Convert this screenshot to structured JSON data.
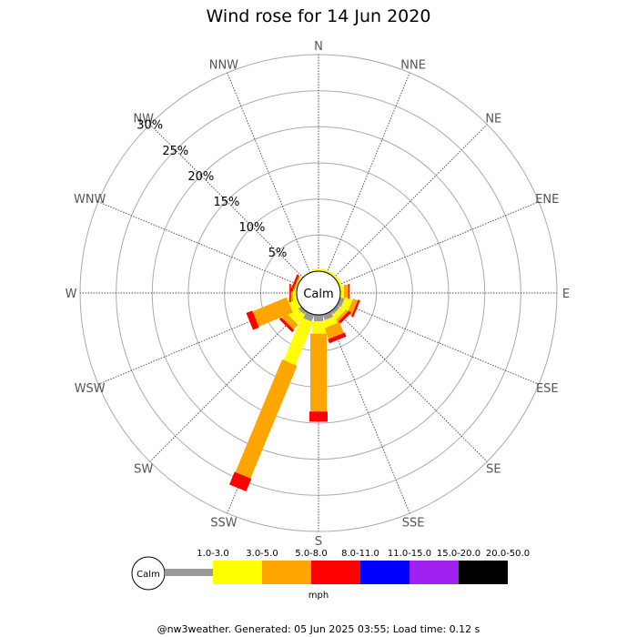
{
  "chart_data": {
    "type": "wind-rose",
    "title": "Wind rose for 14 Jun 2020",
    "directions": [
      "N",
      "NNE",
      "NE",
      "ENE",
      "E",
      "ESE",
      "SE",
      "SSE",
      "S",
      "SSW",
      "SW",
      "WSW",
      "W",
      "WNW",
      "NW",
      "NNW"
    ],
    "radial_ticks": [
      "5%",
      "10%",
      "15%",
      "20%",
      "25%",
      "30%"
    ],
    "radial_max_percent": 30,
    "calm_label": "Calm",
    "speed_bins": [
      "1.0-3.0",
      "3.0-5.0",
      "5.0-8.0",
      "8.0-11.0",
      "11.0-15.0",
      "15.0-20.0",
      "20.0-50.0"
    ],
    "bin_colors": [
      "#999999",
      "#ffff00",
      "#ffa500",
      "#ff0000",
      "#0000ff",
      "#a020f0",
      "#000000"
    ],
    "unit": "mph",
    "series": [
      {
        "direction": "N",
        "values": [
          0,
          0.3,
          0,
          0,
          0,
          0,
          0
        ]
      },
      {
        "direction": "NNE",
        "values": [
          0,
          0.3,
          0,
          0,
          0,
          0,
          0
        ]
      },
      {
        "direction": "NE",
        "values": [
          0,
          0.3,
          0,
          0,
          0,
          0,
          0
        ]
      },
      {
        "direction": "ENE",
        "values": [
          0,
          0.4,
          0,
          0,
          0,
          0,
          0
        ]
      },
      {
        "direction": "E",
        "values": [
          0,
          0.5,
          0.6,
          0.2,
          0,
          0,
          0
        ]
      },
      {
        "direction": "ESE",
        "values": [
          0.6,
          1.1,
          0.7,
          0.3,
          0,
          0,
          0
        ]
      },
      {
        "direction": "SE",
        "values": [
          0.5,
          0.8,
          0.4,
          0.4,
          0,
          0,
          0
        ]
      },
      {
        "direction": "SSE",
        "values": [
          0.8,
          1.0,
          1.6,
          0.6,
          0,
          0,
          0
        ]
      },
      {
        "direction": "S",
        "values": [
          0.9,
          1.7,
          10.8,
          1.4,
          0,
          0,
          0
        ]
      },
      {
        "direction": "SSW",
        "values": [
          1.0,
          6.4,
          16.9,
          1.9,
          0,
          0,
          0
        ]
      },
      {
        "direction": "SW",
        "values": [
          0.5,
          1.6,
          0.9,
          0.4,
          0,
          0,
          0
        ]
      },
      {
        "direction": "WSW",
        "values": [
          0,
          1.3,
          5.1,
          0.9,
          0,
          0,
          0
        ]
      },
      {
        "direction": "W",
        "values": [
          0,
          0.5,
          0.3,
          0.2,
          0,
          0,
          0
        ]
      },
      {
        "direction": "WNW",
        "values": [
          0,
          0.2,
          0.2,
          0.3,
          0,
          0,
          0
        ]
      },
      {
        "direction": "NW",
        "values": [
          0,
          0.1,
          0,
          0,
          0,
          0,
          0
        ]
      },
      {
        "direction": "NNW",
        "values": [
          0,
          0.1,
          0,
          0,
          0,
          0,
          0
        ]
      }
    ]
  },
  "footer": "@nw3weather. Generated: 05 Jun 2025 03:55; Load time: 0.12 s"
}
